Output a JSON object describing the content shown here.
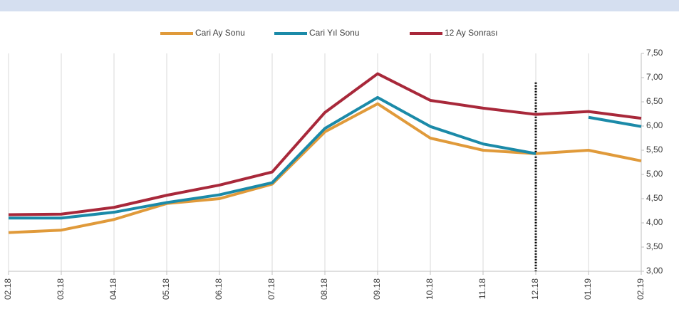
{
  "chart_data": {
    "type": "line",
    "categories": [
      "02.18",
      "03.18",
      "04.18",
      "05.18",
      "06.18",
      "07.18",
      "08.18",
      "09.18",
      "10.18",
      "11.18",
      "12.18",
      "01.19",
      "02.19"
    ],
    "series": [
      {
        "name": "Cari Ay Sonu",
        "color": "#e09a3a",
        "values": [
          3.8,
          3.85,
          4.07,
          4.4,
          4.5,
          4.8,
          5.88,
          6.46,
          5.75,
          5.5,
          5.43,
          5.5,
          5.28
        ]
      },
      {
        "name": "Cari Yıl Sonu",
        "color": "#1b8aa8",
        "values": [
          4.1,
          4.1,
          4.22,
          4.42,
          4.58,
          4.83,
          5.95,
          6.59,
          5.99,
          5.63,
          5.43,
          6.18,
          5.99
        ],
        "break_at": 10
      },
      {
        "name": "12 Ay Sonrası",
        "color": "#a8283a",
        "values": [
          4.17,
          4.18,
          4.32,
          4.57,
          4.78,
          5.05,
          6.28,
          7.08,
          6.53,
          6.37,
          6.24,
          6.3,
          6.16
        ]
      }
    ],
    "ylim": [
      3,
      7.5
    ],
    "yticks": [
      {
        "value": 3,
        "label": "3,00"
      },
      {
        "value": 3.5,
        "label": "3,50"
      },
      {
        "value": 4,
        "label": "4,00"
      },
      {
        "value": 4.5,
        "label": "4,50"
      },
      {
        "value": 5,
        "label": "5,00"
      },
      {
        "value": 5.5,
        "label": "5,50"
      },
      {
        "value": 6,
        "label": "6,00"
      },
      {
        "value": 6.5,
        "label": "6,50"
      },
      {
        "value": 7,
        "label": "7,00"
      },
      {
        "value": 7.5,
        "label": "7,50"
      }
    ],
    "grid": "x",
    "legend": "top",
    "vline": {
      "index": 10,
      "top": 6.9
    }
  }
}
